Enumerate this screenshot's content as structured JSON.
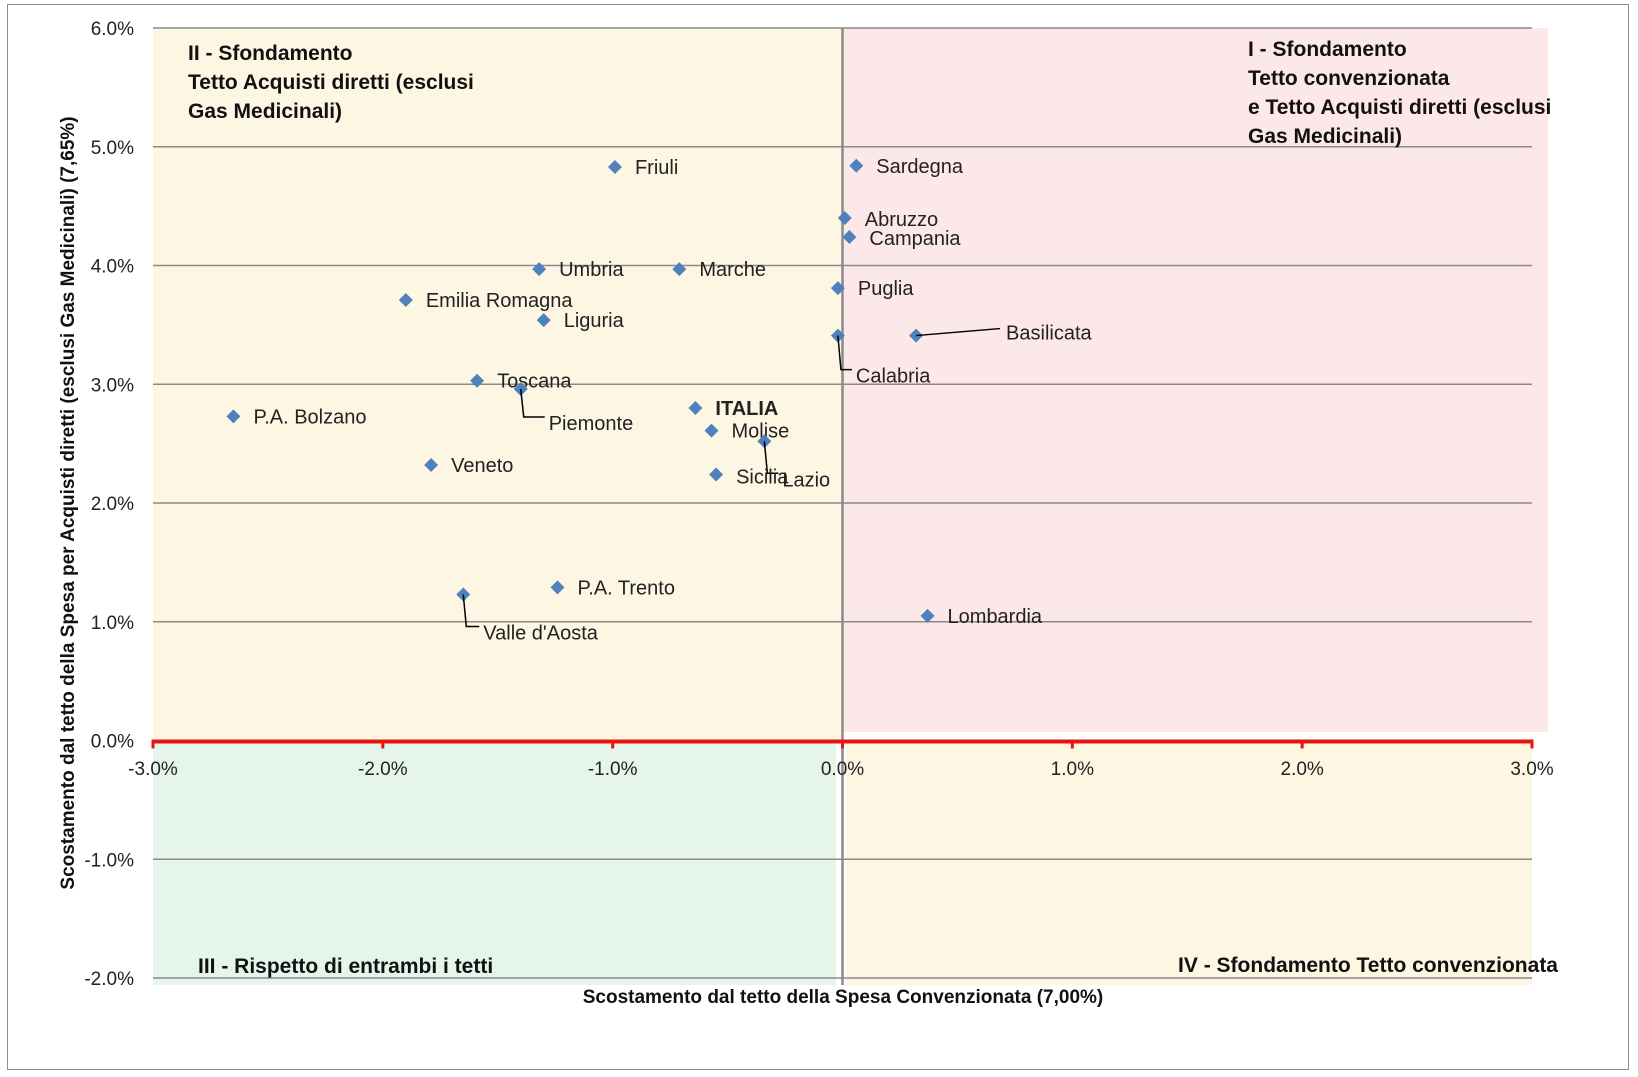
{
  "chart_data": {
    "type": "scatter",
    "title": "",
    "xlabel": "Scostamento dal tetto della Spesa Convenzionata (7,00%)",
    "ylabel": "Scostamento dal tetto della Spesa per Acquisti diretti   (esclusi Gas Medicinali) (7,65%)",
    "xlim": [
      -3.0,
      3.0
    ],
    "ylim": [
      -2.0,
      6.0
    ],
    "x_ticks": [
      "-3.0%",
      "-2.0%",
      "-1.0%",
      "0.0%",
      "1.0%",
      "2.0%",
      "3.0%"
    ],
    "y_ticks": [
      "-2.0%",
      "-1.0%",
      "0.0%",
      "1.0%",
      "2.0%",
      "3.0%",
      "4.0%",
      "5.0%",
      "6.0%"
    ],
    "grid": true,
    "marker_color": "#4f81bd",
    "quadrants": [
      {
        "id": "I",
        "lines": [
          "I - Sfondamento",
          "Tetto convenzionata",
          "e Tetto Acquisti diretti (esclusi",
          "Gas Medicinali)"
        ],
        "color": "#fde8e9"
      },
      {
        "id": "II",
        "lines": [
          "II - Sfondamento",
          "Tetto Acquisti diretti (esclusi",
          "Gas Medicinali)"
        ],
        "color": "#fdf6e3"
      },
      {
        "id": "III",
        "lines": [
          "III - Rispetto di entrambi i tetti"
        ],
        "color": "#e5f5eb"
      },
      {
        "id": "IV",
        "lines": [
          "IV - Sfondamento Tetto convenzionata"
        ],
        "color": "#fdf6e3"
      }
    ],
    "points": [
      {
        "name": "Friuli",
        "x": -0.99,
        "y": 4.83
      },
      {
        "name": "Sardegna",
        "x": 0.06,
        "y": 4.84
      },
      {
        "name": "Abruzzo",
        "x": 0.01,
        "y": 4.4
      },
      {
        "name": "Campania",
        "x": 0.03,
        "y": 4.24
      },
      {
        "name": "Umbria",
        "x": -1.32,
        "y": 3.97
      },
      {
        "name": "Marche",
        "x": -0.71,
        "y": 3.97
      },
      {
        "name": "Puglia",
        "x": -0.02,
        "y": 3.81
      },
      {
        "name": "Emilia Romagna",
        "x": -1.9,
        "y": 3.71
      },
      {
        "name": "Liguria",
        "x": -1.3,
        "y": 3.54
      },
      {
        "name": "Basilicata",
        "x": 0.32,
        "y": 3.41
      },
      {
        "name": "Calabria",
        "x": -0.02,
        "y": 3.41
      },
      {
        "name": "Toscana",
        "x": -1.59,
        "y": 3.03
      },
      {
        "name": "Piemonte",
        "x": -1.4,
        "y": 2.96
      },
      {
        "name": "P.A. Bolzano",
        "x": -2.65,
        "y": 2.73
      },
      {
        "name": "ITALIA",
        "x": -0.64,
        "y": 2.8,
        "bold": true
      },
      {
        "name": "Molise",
        "x": -0.57,
        "y": 2.61
      },
      {
        "name": "Lazio",
        "x": -0.34,
        "y": 2.52
      },
      {
        "name": "Sicilia",
        "x": -0.55,
        "y": 2.24
      },
      {
        "name": "Veneto",
        "x": -1.79,
        "y": 2.32
      },
      {
        "name": "P.A. Trento",
        "x": -1.24,
        "y": 1.29
      },
      {
        "name": "Valle d'Aosta",
        "x": -1.65,
        "y": 1.23
      },
      {
        "name": "Lombardia",
        "x": 0.37,
        "y": 1.05
      }
    ]
  }
}
